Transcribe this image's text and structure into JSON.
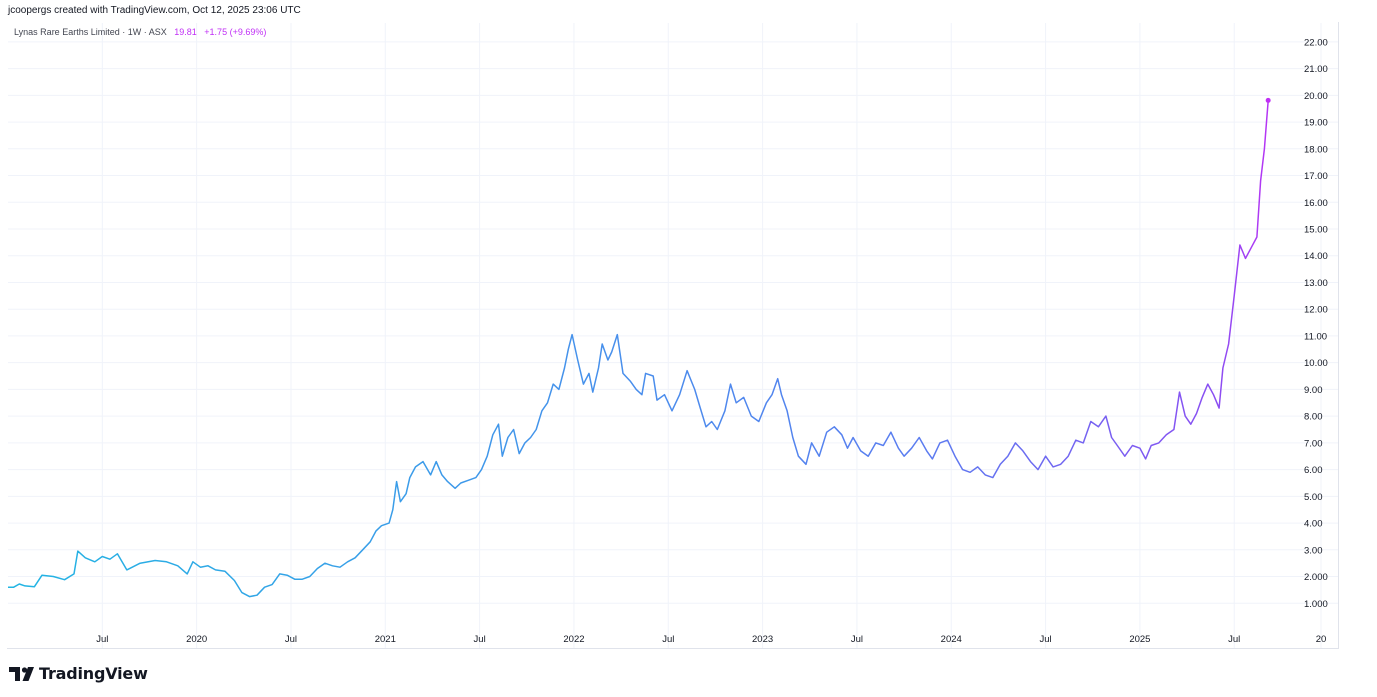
{
  "header": {
    "credit": "jcoopergs created with TradingView.com, Oct 12, 2025 23:06 UTC"
  },
  "legend": {
    "symbol": "Lynas Rare Earths Limited · 1W · ASX",
    "last_price": "19.81",
    "change": "+1.75 (+9.69%)"
  },
  "brand": {
    "name": "TradingView",
    "icon": "tradingview-logo-icon"
  },
  "colors": {
    "line_start": "#22b5e3",
    "line_mid": "#5b7cf0",
    "line_end": "#c02ff5",
    "grid": "#f0f3fa",
    "text": "#131722"
  },
  "chart_data": {
    "type": "line",
    "title": "Lynas Rare Earths Limited · 1W · ASX",
    "xlabel": "",
    "ylabel": "",
    "ylim": [
      0.0,
      22.5
    ],
    "y_ticks": [
      "1.000",
      "2.000",
      "3.00",
      "4.00",
      "5.00",
      "6.00",
      "7.00",
      "8.00",
      "9.00",
      "10.00",
      "11.00",
      "12.00",
      "13.00",
      "14.00",
      "15.00",
      "16.00",
      "17.00",
      "18.00",
      "19.00",
      "20.00",
      "21.00",
      "22.00"
    ],
    "x_ticks": [
      {
        "label": "Jul",
        "t": 2019.5
      },
      {
        "label": "2020",
        "t": 2020.0
      },
      {
        "label": "Jul",
        "t": 2020.5
      },
      {
        "label": "2021",
        "t": 2021.0
      },
      {
        "label": "Jul",
        "t": 2021.5
      },
      {
        "label": "2022",
        "t": 2022.0
      },
      {
        "label": "Jul",
        "t": 2022.5
      },
      {
        "label": "2023",
        "t": 2023.0
      },
      {
        "label": "Jul",
        "t": 2023.5
      },
      {
        "label": "2024",
        "t": 2024.0
      },
      {
        "label": "Jul",
        "t": 2024.5
      },
      {
        "label": "2025",
        "t": 2025.0
      },
      {
        "label": "Jul",
        "t": 2025.5
      },
      {
        "label": "20",
        "t": 2025.96
      }
    ],
    "grid": true,
    "series": [
      {
        "points": [
          [
            2019.0,
            1.6
          ],
          [
            2019.03,
            1.6
          ],
          [
            2019.06,
            1.72
          ],
          [
            2019.09,
            1.65
          ],
          [
            2019.14,
            1.62
          ],
          [
            2019.18,
            2.05
          ],
          [
            2019.24,
            2.0
          ],
          [
            2019.3,
            1.88
          ],
          [
            2019.35,
            2.1
          ],
          [
            2019.37,
            2.95
          ],
          [
            2019.41,
            2.7
          ],
          [
            2019.46,
            2.55
          ],
          [
            2019.5,
            2.75
          ],
          [
            2019.54,
            2.65
          ],
          [
            2019.58,
            2.85
          ],
          [
            2019.63,
            2.25
          ],
          [
            2019.7,
            2.5
          ],
          [
            2019.78,
            2.6
          ],
          [
            2019.84,
            2.55
          ],
          [
            2019.9,
            2.4
          ],
          [
            2019.95,
            2.1
          ],
          [
            2019.98,
            2.55
          ],
          [
            2020.02,
            2.35
          ],
          [
            2020.06,
            2.4
          ],
          [
            2020.1,
            2.25
          ],
          [
            2020.15,
            2.2
          ],
          [
            2020.2,
            1.85
          ],
          [
            2020.24,
            1.4
          ],
          [
            2020.28,
            1.25
          ],
          [
            2020.32,
            1.3
          ],
          [
            2020.36,
            1.6
          ],
          [
            2020.4,
            1.7
          ],
          [
            2020.44,
            2.1
          ],
          [
            2020.48,
            2.05
          ],
          [
            2020.52,
            1.9
          ],
          [
            2020.56,
            1.9
          ],
          [
            2020.6,
            2.0
          ],
          [
            2020.64,
            2.3
          ],
          [
            2020.68,
            2.5
          ],
          [
            2020.72,
            2.4
          ],
          [
            2020.76,
            2.35
          ],
          [
            2020.8,
            2.55
          ],
          [
            2020.84,
            2.7
          ],
          [
            2020.88,
            3.0
          ],
          [
            2020.92,
            3.3
          ],
          [
            2020.95,
            3.7
          ],
          [
            2020.98,
            3.9
          ],
          [
            2021.02,
            4.0
          ],
          [
            2021.04,
            4.5
          ],
          [
            2021.06,
            5.55
          ],
          [
            2021.08,
            4.8
          ],
          [
            2021.11,
            5.1
          ],
          [
            2021.13,
            5.7
          ],
          [
            2021.16,
            6.1
          ],
          [
            2021.2,
            6.3
          ],
          [
            2021.24,
            5.8
          ],
          [
            2021.27,
            6.3
          ],
          [
            2021.3,
            5.8
          ],
          [
            2021.33,
            5.55
          ],
          [
            2021.37,
            5.3
          ],
          [
            2021.4,
            5.5
          ],
          [
            2021.44,
            5.6
          ],
          [
            2021.48,
            5.7
          ],
          [
            2021.51,
            6.0
          ],
          [
            2021.54,
            6.5
          ],
          [
            2021.57,
            7.3
          ],
          [
            2021.6,
            7.7
          ],
          [
            2021.62,
            6.5
          ],
          [
            2021.65,
            7.2
          ],
          [
            2021.68,
            7.5
          ],
          [
            2021.71,
            6.6
          ],
          [
            2021.74,
            7.0
          ],
          [
            2021.77,
            7.2
          ],
          [
            2021.8,
            7.5
          ],
          [
            2021.83,
            8.2
          ],
          [
            2021.86,
            8.5
          ],
          [
            2021.89,
            9.2
          ],
          [
            2021.92,
            9.0
          ],
          [
            2021.95,
            9.8
          ],
          [
            2021.97,
            10.5
          ],
          [
            2021.99,
            11.05
          ],
          [
            2022.02,
            10.1
          ],
          [
            2022.05,
            9.2
          ],
          [
            2022.08,
            9.6
          ],
          [
            2022.1,
            8.9
          ],
          [
            2022.13,
            9.8
          ],
          [
            2022.15,
            10.7
          ],
          [
            2022.18,
            10.1
          ],
          [
            2022.2,
            10.4
          ],
          [
            2022.23,
            11.05
          ],
          [
            2022.26,
            9.6
          ],
          [
            2022.3,
            9.3
          ],
          [
            2022.33,
            9.0
          ],
          [
            2022.36,
            8.8
          ],
          [
            2022.38,
            9.6
          ],
          [
            2022.42,
            9.5
          ],
          [
            2022.44,
            8.6
          ],
          [
            2022.48,
            8.8
          ],
          [
            2022.52,
            8.2
          ],
          [
            2022.56,
            8.8
          ],
          [
            2022.6,
            9.7
          ],
          [
            2022.64,
            9.0
          ],
          [
            2022.67,
            8.3
          ],
          [
            2022.7,
            7.6
          ],
          [
            2022.73,
            7.8
          ],
          [
            2022.76,
            7.5
          ],
          [
            2022.8,
            8.2
          ],
          [
            2022.83,
            9.2
          ],
          [
            2022.86,
            8.5
          ],
          [
            2022.9,
            8.7
          ],
          [
            2022.94,
            8.0
          ],
          [
            2022.98,
            7.8
          ],
          [
            2023.02,
            8.5
          ],
          [
            2023.05,
            8.8
          ],
          [
            2023.08,
            9.4
          ],
          [
            2023.1,
            8.8
          ],
          [
            2023.13,
            8.2
          ],
          [
            2023.16,
            7.2
          ],
          [
            2023.19,
            6.5
          ],
          [
            2023.23,
            6.2
          ],
          [
            2023.26,
            7.0
          ],
          [
            2023.3,
            6.5
          ],
          [
            2023.34,
            7.4
          ],
          [
            2023.38,
            7.6
          ],
          [
            2023.42,
            7.3
          ],
          [
            2023.45,
            6.8
          ],
          [
            2023.48,
            7.2
          ],
          [
            2023.52,
            6.7
          ],
          [
            2023.56,
            6.5
          ],
          [
            2023.6,
            7.0
          ],
          [
            2023.64,
            6.9
          ],
          [
            2023.68,
            7.4
          ],
          [
            2023.72,
            6.8
          ],
          [
            2023.75,
            6.5
          ],
          [
            2023.79,
            6.8
          ],
          [
            2023.83,
            7.2
          ],
          [
            2023.87,
            6.7
          ],
          [
            2023.9,
            6.4
          ],
          [
            2023.94,
            7.0
          ],
          [
            2023.98,
            7.1
          ],
          [
            2024.02,
            6.5
          ],
          [
            2024.06,
            6.0
          ],
          [
            2024.1,
            5.9
          ],
          [
            2024.14,
            6.1
          ],
          [
            2024.18,
            5.8
          ],
          [
            2024.22,
            5.7
          ],
          [
            2024.26,
            6.2
          ],
          [
            2024.3,
            6.5
          ],
          [
            2024.34,
            7.0
          ],
          [
            2024.38,
            6.7
          ],
          [
            2024.42,
            6.3
          ],
          [
            2024.46,
            6.0
          ],
          [
            2024.5,
            6.5
          ],
          [
            2024.54,
            6.1
          ],
          [
            2024.58,
            6.2
          ],
          [
            2024.62,
            6.5
          ],
          [
            2024.66,
            7.1
          ],
          [
            2024.7,
            7.0
          ],
          [
            2024.74,
            7.8
          ],
          [
            2024.78,
            7.6
          ],
          [
            2024.82,
            8.0
          ],
          [
            2024.85,
            7.2
          ],
          [
            2024.88,
            6.9
          ],
          [
            2024.92,
            6.5
          ],
          [
            2024.96,
            6.9
          ],
          [
            2025.0,
            6.8
          ],
          [
            2025.03,
            6.4
          ],
          [
            2025.06,
            6.9
          ],
          [
            2025.1,
            7.0
          ],
          [
            2025.14,
            7.3
          ],
          [
            2025.18,
            7.5
          ],
          [
            2025.21,
            8.9
          ],
          [
            2025.24,
            8.0
          ],
          [
            2025.27,
            7.7
          ],
          [
            2025.3,
            8.1
          ],
          [
            2025.33,
            8.7
          ],
          [
            2025.36,
            9.2
          ],
          [
            2025.39,
            8.8
          ],
          [
            2025.42,
            8.3
          ],
          [
            2025.44,
            9.8
          ],
          [
            2025.47,
            10.7
          ],
          [
            2025.5,
            12.5
          ],
          [
            2025.53,
            14.4
          ],
          [
            2025.56,
            13.9
          ],
          [
            2025.59,
            14.3
          ],
          [
            2025.62,
            14.7
          ],
          [
            2025.64,
            16.8
          ],
          [
            2025.66,
            18.0
          ],
          [
            2025.68,
            19.81
          ]
        ]
      }
    ]
  }
}
